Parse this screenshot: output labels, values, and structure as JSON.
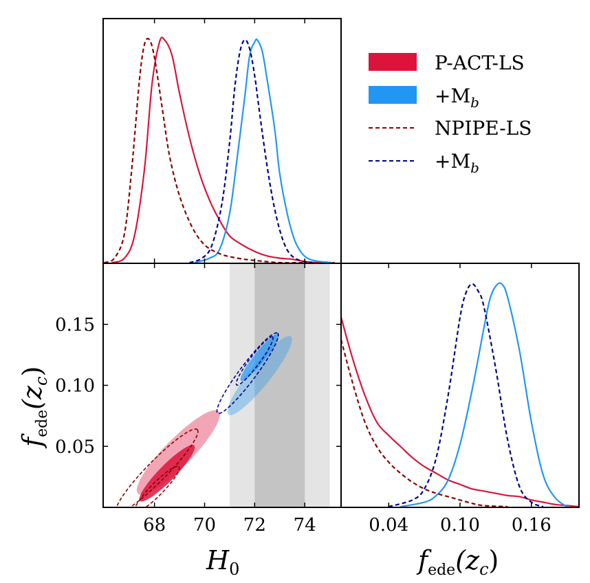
{
  "chart_data": {
    "type": "triangle-corner-plot",
    "parameters": [
      "H0",
      "f_ede"
    ],
    "colors": {
      "p_act_ls": "#dc143c",
      "p_act_ls_mb": "#2196f3",
      "npipe_ls": "#8b0000",
      "npipe_ls_mb": "#00008b",
      "band_outer": "#e4e4e4",
      "band_inner": "#c4c4c4"
    },
    "legend": [
      {
        "label": "P-ACT-LS",
        "style": "filled",
        "color": "#dc143c"
      },
      {
        "label": "+M",
        "sub": "b",
        "style": "filled",
        "color": "#2196f3"
      },
      {
        "label": "NPIPE-LS",
        "style": "dashed",
        "color": "#8b0000"
      },
      {
        "label": "+M",
        "sub": "b",
        "style": "dashed",
        "color": "#00008b"
      }
    ],
    "axes": {
      "h0": {
        "label": "H",
        "sub": "0",
        "range": [
          65.95,
          75.45
        ],
        "ticks": [
          "68",
          "70",
          "72",
          "74"
        ],
        "tick_values": [
          68,
          70,
          72,
          74
        ]
      },
      "fede_left": {
        "label": "f",
        "sub": "ede",
        "arg": "(z",
        "argsub": "c",
        "close": ")",
        "range": [
          0,
          0.2
        ],
        "ticks": [
          "0.05",
          "0.10",
          "0.15"
        ],
        "tick_values": [
          0.05,
          0.1,
          0.15
        ]
      },
      "fede_bottom": {
        "label": "f",
        "sub": "ede",
        "arg": "(z",
        "argsub": "c",
        "close": ")",
        "range": [
          0,
          0.2
        ],
        "ticks": [
          "0.04",
          "0.10",
          "0.16"
        ],
        "tick_values": [
          0.04,
          0.1,
          0.16
        ]
      }
    },
    "shoes_bands": {
      "inner": [
        72,
        74
      ],
      "outer": [
        71,
        75
      ]
    },
    "h0_marginals": [
      {
        "name": "P-ACT-LS",
        "style": "solid",
        "color": "#dc143c",
        "x": [
          66.3,
          66.8,
          67.2,
          67.6,
          67.9,
          68.2,
          68.4,
          68.7,
          69.0,
          69.4,
          69.8,
          70.2,
          70.6,
          71.0,
          71.5,
          72.0,
          72.5,
          73.0,
          73.5,
          74.0,
          74.5,
          75.2
        ],
        "y": [
          0,
          0.02,
          0.12,
          0.42,
          0.8,
          0.99,
          1.0,
          0.93,
          0.76,
          0.56,
          0.4,
          0.28,
          0.19,
          0.12,
          0.08,
          0.05,
          0.03,
          0.02,
          0.015,
          0.005,
          0,
          0
        ]
      },
      {
        "name": "P-ACT-LS + Mb",
        "style": "solid",
        "color": "#2196f3",
        "x": [
          69.6,
          70.2,
          70.6,
          71.0,
          71.3,
          71.6,
          71.8,
          72.0,
          72.1,
          72.3,
          72.5,
          72.8,
          73.0,
          73.3,
          73.6,
          73.9,
          74.2,
          74.6,
          75.1
        ],
        "y": [
          0,
          0.02,
          0.06,
          0.22,
          0.47,
          0.74,
          0.93,
          0.99,
          1.0,
          0.95,
          0.82,
          0.6,
          0.4,
          0.22,
          0.1,
          0.04,
          0.015,
          0.005,
          0
        ]
      },
      {
        "name": "NPIPE-LS",
        "style": "dashed",
        "color": "#8b0000",
        "x": [
          66.0,
          66.4,
          66.8,
          67.1,
          67.4,
          67.6,
          67.8,
          68.0,
          68.3,
          68.6,
          69.0,
          69.5,
          70.0,
          70.6,
          71.3,
          72.0,
          73.0,
          74.0
        ],
        "y": [
          0,
          0.02,
          0.13,
          0.43,
          0.82,
          0.98,
          1.0,
          0.92,
          0.7,
          0.48,
          0.3,
          0.16,
          0.08,
          0.04,
          0.02,
          0.01,
          0,
          0
        ]
      },
      {
        "name": "NPIPE-LS + Mb",
        "style": "dashed",
        "color": "#00008b",
        "x": [
          69.4,
          69.9,
          70.3,
          70.7,
          71.0,
          71.2,
          71.4,
          71.6,
          71.8,
          72.0,
          72.2,
          72.5,
          72.8,
          73.1,
          73.4,
          73.8,
          74.3
        ],
        "y": [
          0,
          0.02,
          0.08,
          0.27,
          0.54,
          0.78,
          0.94,
          1.0,
          0.96,
          0.84,
          0.67,
          0.43,
          0.24,
          0.11,
          0.04,
          0.01,
          0
        ]
      }
    ],
    "fede_marginals": [
      {
        "name": "P-ACT-LS",
        "style": "solid",
        "color": "#dc143c",
        "x": [
          0,
          0.01,
          0.02,
          0.03,
          0.04,
          0.05,
          0.06,
          0.07,
          0.08,
          0.09,
          0.1,
          0.11,
          0.12,
          0.13,
          0.14,
          0.15,
          0.16,
          0.17,
          0.18,
          0.19,
          0.2
        ],
        "y": [
          0.85,
          0.66,
          0.5,
          0.38,
          0.32,
          0.27,
          0.22,
          0.18,
          0.15,
          0.12,
          0.1,
          0.08,
          0.07,
          0.06,
          0.05,
          0.045,
          0.03,
          0.02,
          0.01,
          0.005,
          0
        ]
      },
      {
        "name": "P-ACT-LS + Mb",
        "style": "solid",
        "color": "#2196f3",
        "x": [
          0.05,
          0.07,
          0.08,
          0.09,
          0.1,
          0.11,
          0.12,
          0.125,
          0.13,
          0.135,
          0.14,
          0.15,
          0.16,
          0.17,
          0.18,
          0.19
        ],
        "y": [
          0,
          0.02,
          0.05,
          0.12,
          0.28,
          0.52,
          0.8,
          0.93,
          0.99,
          1.0,
          0.94,
          0.7,
          0.38,
          0.14,
          0.04,
          0
        ]
      },
      {
        "name": "NPIPE-LS",
        "style": "dashed",
        "color": "#8b0000",
        "x": [
          0,
          0.01,
          0.02,
          0.03,
          0.04,
          0.05,
          0.06,
          0.07,
          0.08,
          0.09,
          0.1,
          0.11,
          0.12,
          0.14
        ],
        "y": [
          0.75,
          0.55,
          0.38,
          0.27,
          0.2,
          0.15,
          0.11,
          0.08,
          0.06,
          0.045,
          0.03,
          0.015,
          0.005,
          0
        ]
      },
      {
        "name": "NPIPE-LS + Mb",
        "style": "dashed",
        "color": "#00008b",
        "x": [
          0.04,
          0.06,
          0.07,
          0.08,
          0.09,
          0.1,
          0.105,
          0.11,
          0.115,
          0.12,
          0.13,
          0.14,
          0.15,
          0.16,
          0.17
        ],
        "y": [
          0,
          0.03,
          0.08,
          0.22,
          0.5,
          0.85,
          0.96,
          1.0,
          0.97,
          0.9,
          0.62,
          0.3,
          0.09,
          0.02,
          0
        ]
      }
    ],
    "contours": [
      {
        "name": "P-ACT-LS 95%",
        "fill": "#dc143c",
        "opacity": 0.38,
        "center": [
          68.95,
          0.045
        ],
        "axis_angle_deg": 24,
        "half_major_h0": 2.3,
        "half_minor_h0": 0.55
      },
      {
        "name": "P-ACT-LS 68%",
        "fill": "#dc143c",
        "opacity": 0.85,
        "center": [
          68.5,
          0.028
        ],
        "axis_angle_deg": 24,
        "half_major_h0": 1.55,
        "half_minor_h0": 0.32
      },
      {
        "name": "P-ACT-LS + Mb 95%",
        "fill": "#2196f3",
        "opacity": 0.35,
        "center": [
          72.2,
          0.108
        ],
        "axis_angle_deg": 27,
        "half_major_h0": 2.0,
        "half_minor_h0": 0.42
      },
      {
        "name": "P-ACT-LS + Mb 68%",
        "fill": "#2196f3",
        "opacity": 0.7,
        "center": [
          72.2,
          0.123
        ],
        "axis_angle_deg": 27,
        "half_major_h0": 1.2,
        "half_minor_h0": 0.22
      },
      {
        "name": "NPIPE-LS 95%",
        "stroke": "#8b0000",
        "dashed": true,
        "center": [
          68.1,
          0.03
        ],
        "axis_angle_deg": 24,
        "half_major_h0": 2.3,
        "half_minor_h0": 0.4
      },
      {
        "name": "NPIPE-LS 68%",
        "stroke": "#8b0000",
        "dashed": true,
        "center": [
          68.1,
          0.015
        ],
        "axis_angle_deg": 24,
        "half_major_h0": 1.25,
        "half_minor_h0": 0.25
      },
      {
        "name": "NPIPE-LS + Mb 95%",
        "stroke": "#00008b",
        "dashed": true,
        "center": [
          71.72,
          0.11
        ],
        "axis_angle_deg": 28,
        "half_major_h0": 2.0,
        "half_minor_h0": 0.33
      },
      {
        "name": "NPIPE-LS + Mb 68%",
        "stroke": "#00008b",
        "dashed": true,
        "center": [
          72.0,
          0.12
        ],
        "axis_angle_deg": 28,
        "half_major_h0": 1.2,
        "half_minor_h0": 0.2
      }
    ]
  }
}
